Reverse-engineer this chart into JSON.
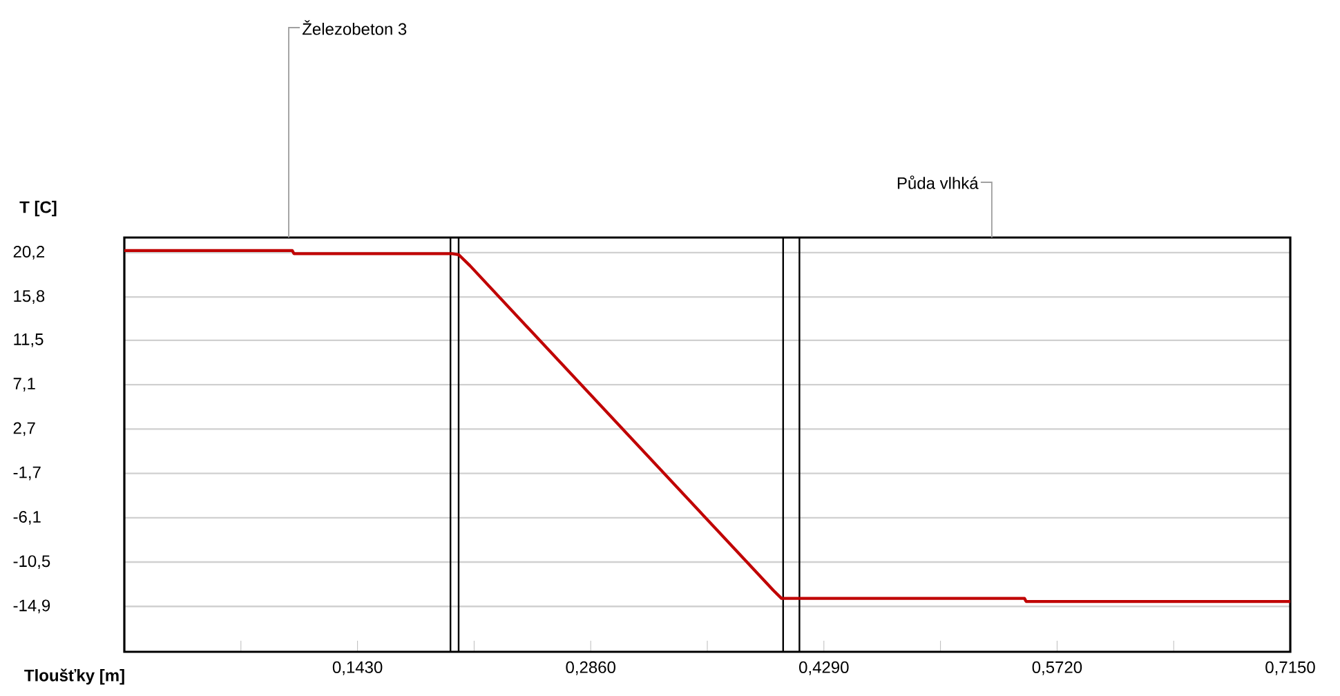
{
  "chart_data": {
    "type": "line",
    "xlabel": "Tloušťky [m]",
    "ylabel": "T [C]",
    "x": [
      0,
      0.103,
      0.104,
      0.201,
      0.205,
      0.212,
      0.398,
      0.403,
      0.552,
      0.553,
      0.715
    ],
    "series": [
      {
        "color": "#c00000",
        "values": [
          20.4,
          20.4,
          20.1,
          20.1,
          20.0,
          18.9,
          -13.3,
          -14.1,
          -14.1,
          -14.4,
          -14.4
        ]
      }
    ],
    "xlim": [
      0,
      0.715
    ],
    "ylim": [
      -19.4,
      21.7
    ],
    "xticks": [
      {
        "value": 0.0715,
        "label": null
      },
      {
        "value": 0.143,
        "label": "0,1430"
      },
      {
        "value": 0.2145,
        "label": null
      },
      {
        "value": 0.286,
        "label": "0,2860"
      },
      {
        "value": 0.3575,
        "label": null
      },
      {
        "value": 0.429,
        "label": "0,4290"
      },
      {
        "value": 0.5005,
        "label": null
      },
      {
        "value": 0.572,
        "label": "0,5720"
      },
      {
        "value": 0.6435,
        "label": null
      },
      {
        "value": 0.715,
        "label": "0,7150"
      }
    ],
    "yticks": [
      {
        "value": 20.2,
        "label": "20,2"
      },
      {
        "value": 15.8,
        "label": "15,8"
      },
      {
        "value": 11.5,
        "label": "11,5"
      },
      {
        "value": 7.1,
        "label": "7,1"
      },
      {
        "value": 2.7,
        "label": "2,7"
      },
      {
        "value": -1.7,
        "label": "-1,7"
      },
      {
        "value": -6.1,
        "label": "-6,1"
      },
      {
        "value": -10.5,
        "label": "-10,5"
      },
      {
        "value": -14.9,
        "label": "-14,9"
      }
    ],
    "grid": "y",
    "marker": "none",
    "line_style": "solid",
    "ref_lines": [
      {
        "axis": "x",
        "value": 0.2,
        "color": "#000000"
      },
      {
        "axis": "x",
        "value": 0.205,
        "color": "#000000"
      },
      {
        "axis": "x",
        "value": 0.404,
        "color": "#000000"
      },
      {
        "axis": "x",
        "value": 0.414,
        "color": "#000000"
      }
    ],
    "annotations": [
      "Železobeton 3",
      "Půda vlhká"
    ]
  }
}
